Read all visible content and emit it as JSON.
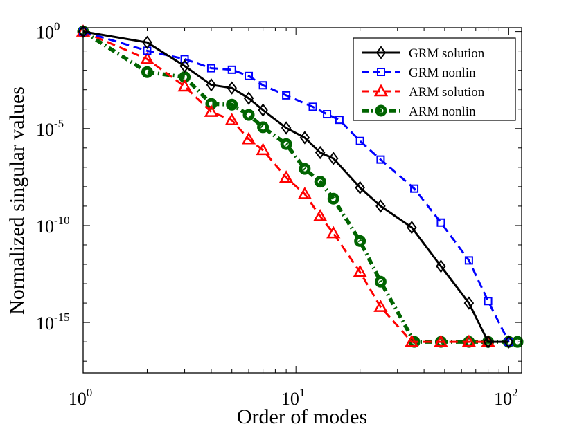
{
  "chart_data": {
    "type": "line",
    "title": "",
    "xlabel": "Order of modes",
    "ylabel": "Normalized singular values",
    "xscale": "log",
    "yscale": "log",
    "xlim_log10": [
      0,
      2.0607
    ],
    "ylim_log10": [
      -17.6,
      0.2
    ],
    "x_ticks": [
      {
        "base": "10",
        "exp": "0",
        "log10": 0
      },
      {
        "base": "10",
        "exp": "1",
        "log10": 1
      },
      {
        "base": "10",
        "exp": "2",
        "log10": 2
      }
    ],
    "y_ticks": [
      {
        "base": "10",
        "exp": "0",
        "log10": 0
      },
      {
        "base": "10",
        "exp": "-5",
        "log10": -5
      },
      {
        "base": "10",
        "exp": "-10",
        "log10": -10
      },
      {
        "base": "10",
        "exp": "-15",
        "log10": -15
      }
    ],
    "legend_location": "top-right",
    "series": [
      {
        "name": "GRM solution",
        "color": "#000000",
        "dash": "solid",
        "marker": "diamond",
        "x": [
          1,
          2,
          3,
          4,
          5,
          6,
          7,
          9,
          11,
          13,
          15,
          20,
          25,
          35,
          48,
          65,
          80,
          100
        ],
        "log10y": [
          0,
          -0.56,
          -1.78,
          -2.75,
          -2.91,
          -3.44,
          -4.05,
          -4.97,
          -5.47,
          -6.24,
          -6.54,
          -8.05,
          -9.0,
          -10.1,
          -12.1,
          -14.0,
          -16.0,
          -16.0
        ]
      },
      {
        "name": "GRM nonlin",
        "color": "#0000ff",
        "dash": "dashed",
        "marker": "square",
        "x": [
          1,
          2,
          3,
          4,
          5,
          6,
          7,
          9,
          12,
          14,
          16,
          20,
          25,
          36,
          48,
          65,
          80,
          100
        ],
        "log10y": [
          0,
          -0.99,
          -1.42,
          -1.89,
          -1.97,
          -2.29,
          -2.77,
          -3.29,
          -3.88,
          -4.26,
          -4.55,
          -5.64,
          -6.6,
          -8.1,
          -9.85,
          -11.8,
          -13.9,
          -16.0
        ]
      },
      {
        "name": "ARM solution",
        "color": "#ff0000",
        "dash": "dashed",
        "marker": "triangle",
        "x": [
          1,
          2,
          3,
          4,
          5,
          6,
          7,
          9,
          11,
          13,
          15,
          20,
          25,
          35,
          48,
          65,
          80
        ],
        "log10y": [
          0,
          -1.42,
          -2.83,
          -4.14,
          -4.57,
          -5.55,
          -6.11,
          -7.53,
          -8.38,
          -9.52,
          -10.4,
          -12.4,
          -14.2,
          -16.0,
          -16.0,
          -16.0,
          -16.0
        ]
      },
      {
        "name": "ARM nonlin",
        "color": "#006400",
        "dash": "dashdot",
        "marker": "circle",
        "x": [
          1,
          2,
          3,
          4,
          5,
          6,
          7,
          9,
          11,
          13,
          15,
          20,
          25,
          36,
          48,
          65,
          80,
          100,
          110
        ],
        "log10y": [
          0,
          -2.09,
          -2.35,
          -3.73,
          -3.77,
          -4.3,
          -4.93,
          -5.8,
          -7.08,
          -7.74,
          -8.62,
          -10.8,
          -12.9,
          -16.0,
          -16.0,
          -16.0,
          -16.0,
          -16.0,
          -16.0
        ]
      }
    ]
  }
}
